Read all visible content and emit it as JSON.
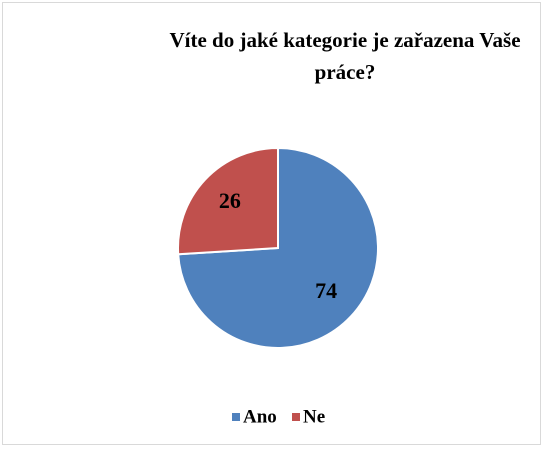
{
  "chart_data": {
    "type": "pie",
    "title": "Víte do jaké kategorie je zařazena Vaše práce?",
    "categories": [
      "Ano",
      "Ne"
    ],
    "values": [
      74,
      26
    ],
    "colors": [
      "#4f81bd",
      "#c0504d"
    ],
    "legend": "bottom"
  }
}
